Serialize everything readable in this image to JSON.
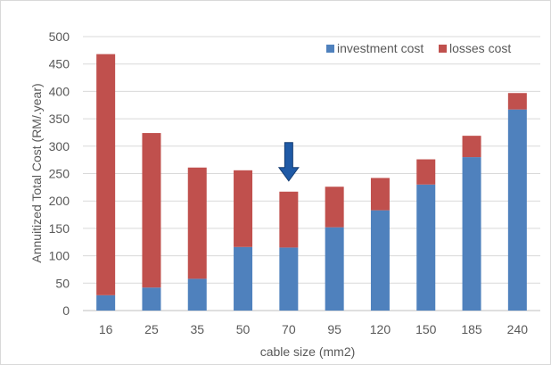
{
  "chart_data": {
    "type": "bar",
    "stacked": true,
    "title": "",
    "xlabel": "cable size (mm2)",
    "ylabel": "Annuitized Total Cost (RM/.year)",
    "ylim": [
      0,
      500
    ],
    "yticks": [
      0,
      50,
      100,
      150,
      200,
      250,
      300,
      350,
      400,
      450,
      500
    ],
    "grid": true,
    "legend_position": "top-right",
    "categories": [
      "16",
      "25",
      "35",
      "50",
      "70",
      "95",
      "120",
      "150",
      "185",
      "240"
    ],
    "series": [
      {
        "name": "investment cost",
        "color": "#4f81bd",
        "values": [
          28,
          42,
          58,
          116,
          115,
          152,
          183,
          230,
          280,
          367
        ]
      },
      {
        "name": "losses cost",
        "color": "#c0504d",
        "values": [
          440,
          282,
          203,
          140,
          102,
          74,
          59,
          46,
          39,
          30
        ]
      }
    ],
    "annotations": [
      {
        "type": "arrow",
        "category": "70",
        "direction": "down",
        "color": "#1f5aa6",
        "icon": "down-arrow-icon"
      }
    ]
  }
}
